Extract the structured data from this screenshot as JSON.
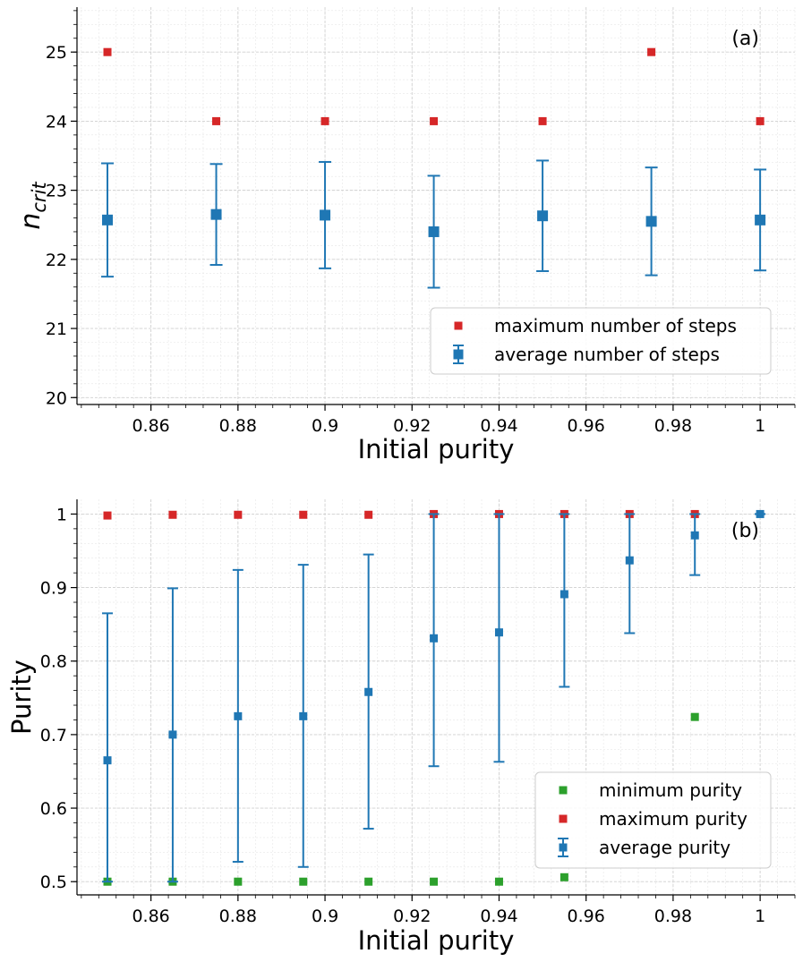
{
  "colors": {
    "red": "#d62728",
    "blue": "#1f77b4",
    "green": "#2ca02c"
  },
  "chart_data": [
    {
      "type": "scatter",
      "panel_label": "(a)",
      "xlabel": "Initial purity",
      "ylabel_main": "n",
      "ylabel_sub": "crit",
      "xlim": [
        0.843,
        1.008
      ],
      "ylim": [
        19.9,
        25.65
      ],
      "xticks": [
        0.86,
        0.88,
        0.9,
        0.92,
        0.94,
        0.96,
        0.98,
        1.0
      ],
      "xtick_labels": [
        "0.86",
        "0.88",
        "0.9",
        "0.92",
        "0.94",
        "0.96",
        "0.98",
        "1"
      ],
      "yticks": [
        20,
        21,
        22,
        23,
        24,
        25
      ],
      "ytick_labels": [
        "20",
        "21",
        "22",
        "23",
        "24",
        "25"
      ],
      "grid": true,
      "legend_position": "lower-right",
      "series": [
        {
          "name": "maximum number of steps",
          "marker": "square",
          "color": "#d62728",
          "x": [
            0.85,
            0.875,
            0.9,
            0.925,
            0.95,
            0.975,
            1.0
          ],
          "y": [
            25,
            24,
            24,
            24,
            24,
            25,
            24
          ]
        },
        {
          "name": "average number of steps",
          "marker": "square-errorbar",
          "color": "#1f77b4",
          "x": [
            0.85,
            0.875,
            0.9,
            0.925,
            0.95,
            0.975,
            1.0
          ],
          "y": [
            22.57,
            22.65,
            22.64,
            22.4,
            22.63,
            22.55,
            22.57
          ],
          "y_low": [
            21.75,
            21.92,
            21.87,
            21.59,
            21.83,
            21.77,
            21.84
          ],
          "y_high": [
            23.39,
            23.38,
            23.41,
            23.21,
            23.43,
            23.33,
            23.3
          ]
        }
      ]
    },
    {
      "type": "scatter",
      "panel_label": "(b)",
      "xlabel": "Initial purity",
      "ylabel": "Purity",
      "xlim": [
        0.843,
        1.008
      ],
      "ylim": [
        0.482,
        1.02
      ],
      "xticks": [
        0.86,
        0.88,
        0.9,
        0.92,
        0.94,
        0.96,
        0.98,
        1.0
      ],
      "xtick_labels": [
        "0.86",
        "0.88",
        "0.9",
        "0.92",
        "0.94",
        "0.96",
        "0.98",
        "1"
      ],
      "yticks": [
        0.5,
        0.6,
        0.7,
        0.8,
        0.9,
        1.0
      ],
      "ytick_labels": [
        "0.5",
        "0.6",
        "0.7",
        "0.8",
        "0.9",
        "1"
      ],
      "grid": true,
      "legend_position": "lower-right",
      "series": [
        {
          "name": "minimum purity",
          "marker": "square",
          "color": "#2ca02c",
          "x": [
            0.85,
            0.865,
            0.88,
            0.895,
            0.91,
            0.925,
            0.94,
            0.955,
            0.985
          ],
          "y": [
            0.5,
            0.5,
            0.5,
            0.5,
            0.5,
            0.5,
            0.5,
            0.506,
            0.724
          ]
        },
        {
          "name": "maximum purity",
          "marker": "square",
          "color": "#d62728",
          "x": [
            0.85,
            0.865,
            0.88,
            0.895,
            0.91,
            0.925,
            0.94,
            0.955,
            0.97,
            0.985
          ],
          "y": [
            0.998,
            0.999,
            0.999,
            0.999,
            0.999,
            1.0,
            1.0,
            1.0,
            1.0,
            1.0
          ]
        },
        {
          "name": "average purity",
          "marker": "square-errorbar",
          "color": "#1f77b4",
          "x": [
            0.85,
            0.865,
            0.88,
            0.895,
            0.91,
            0.925,
            0.94,
            0.955,
            0.97,
            0.985,
            1.0
          ],
          "y": [
            0.665,
            0.7,
            0.725,
            0.725,
            0.758,
            0.831,
            0.839,
            0.891,
            0.937,
            0.971,
            1.0
          ],
          "y_low": [
            0.5,
            0.5,
            0.527,
            0.52,
            0.572,
            0.657,
            0.663,
            0.765,
            0.838,
            0.917,
            1.0
          ],
          "y_high": [
            0.865,
            0.899,
            0.924,
            0.931,
            0.945,
            1.0,
            1.0,
            1.0,
            1.0,
            1.0,
            1.0
          ]
        }
      ]
    }
  ]
}
